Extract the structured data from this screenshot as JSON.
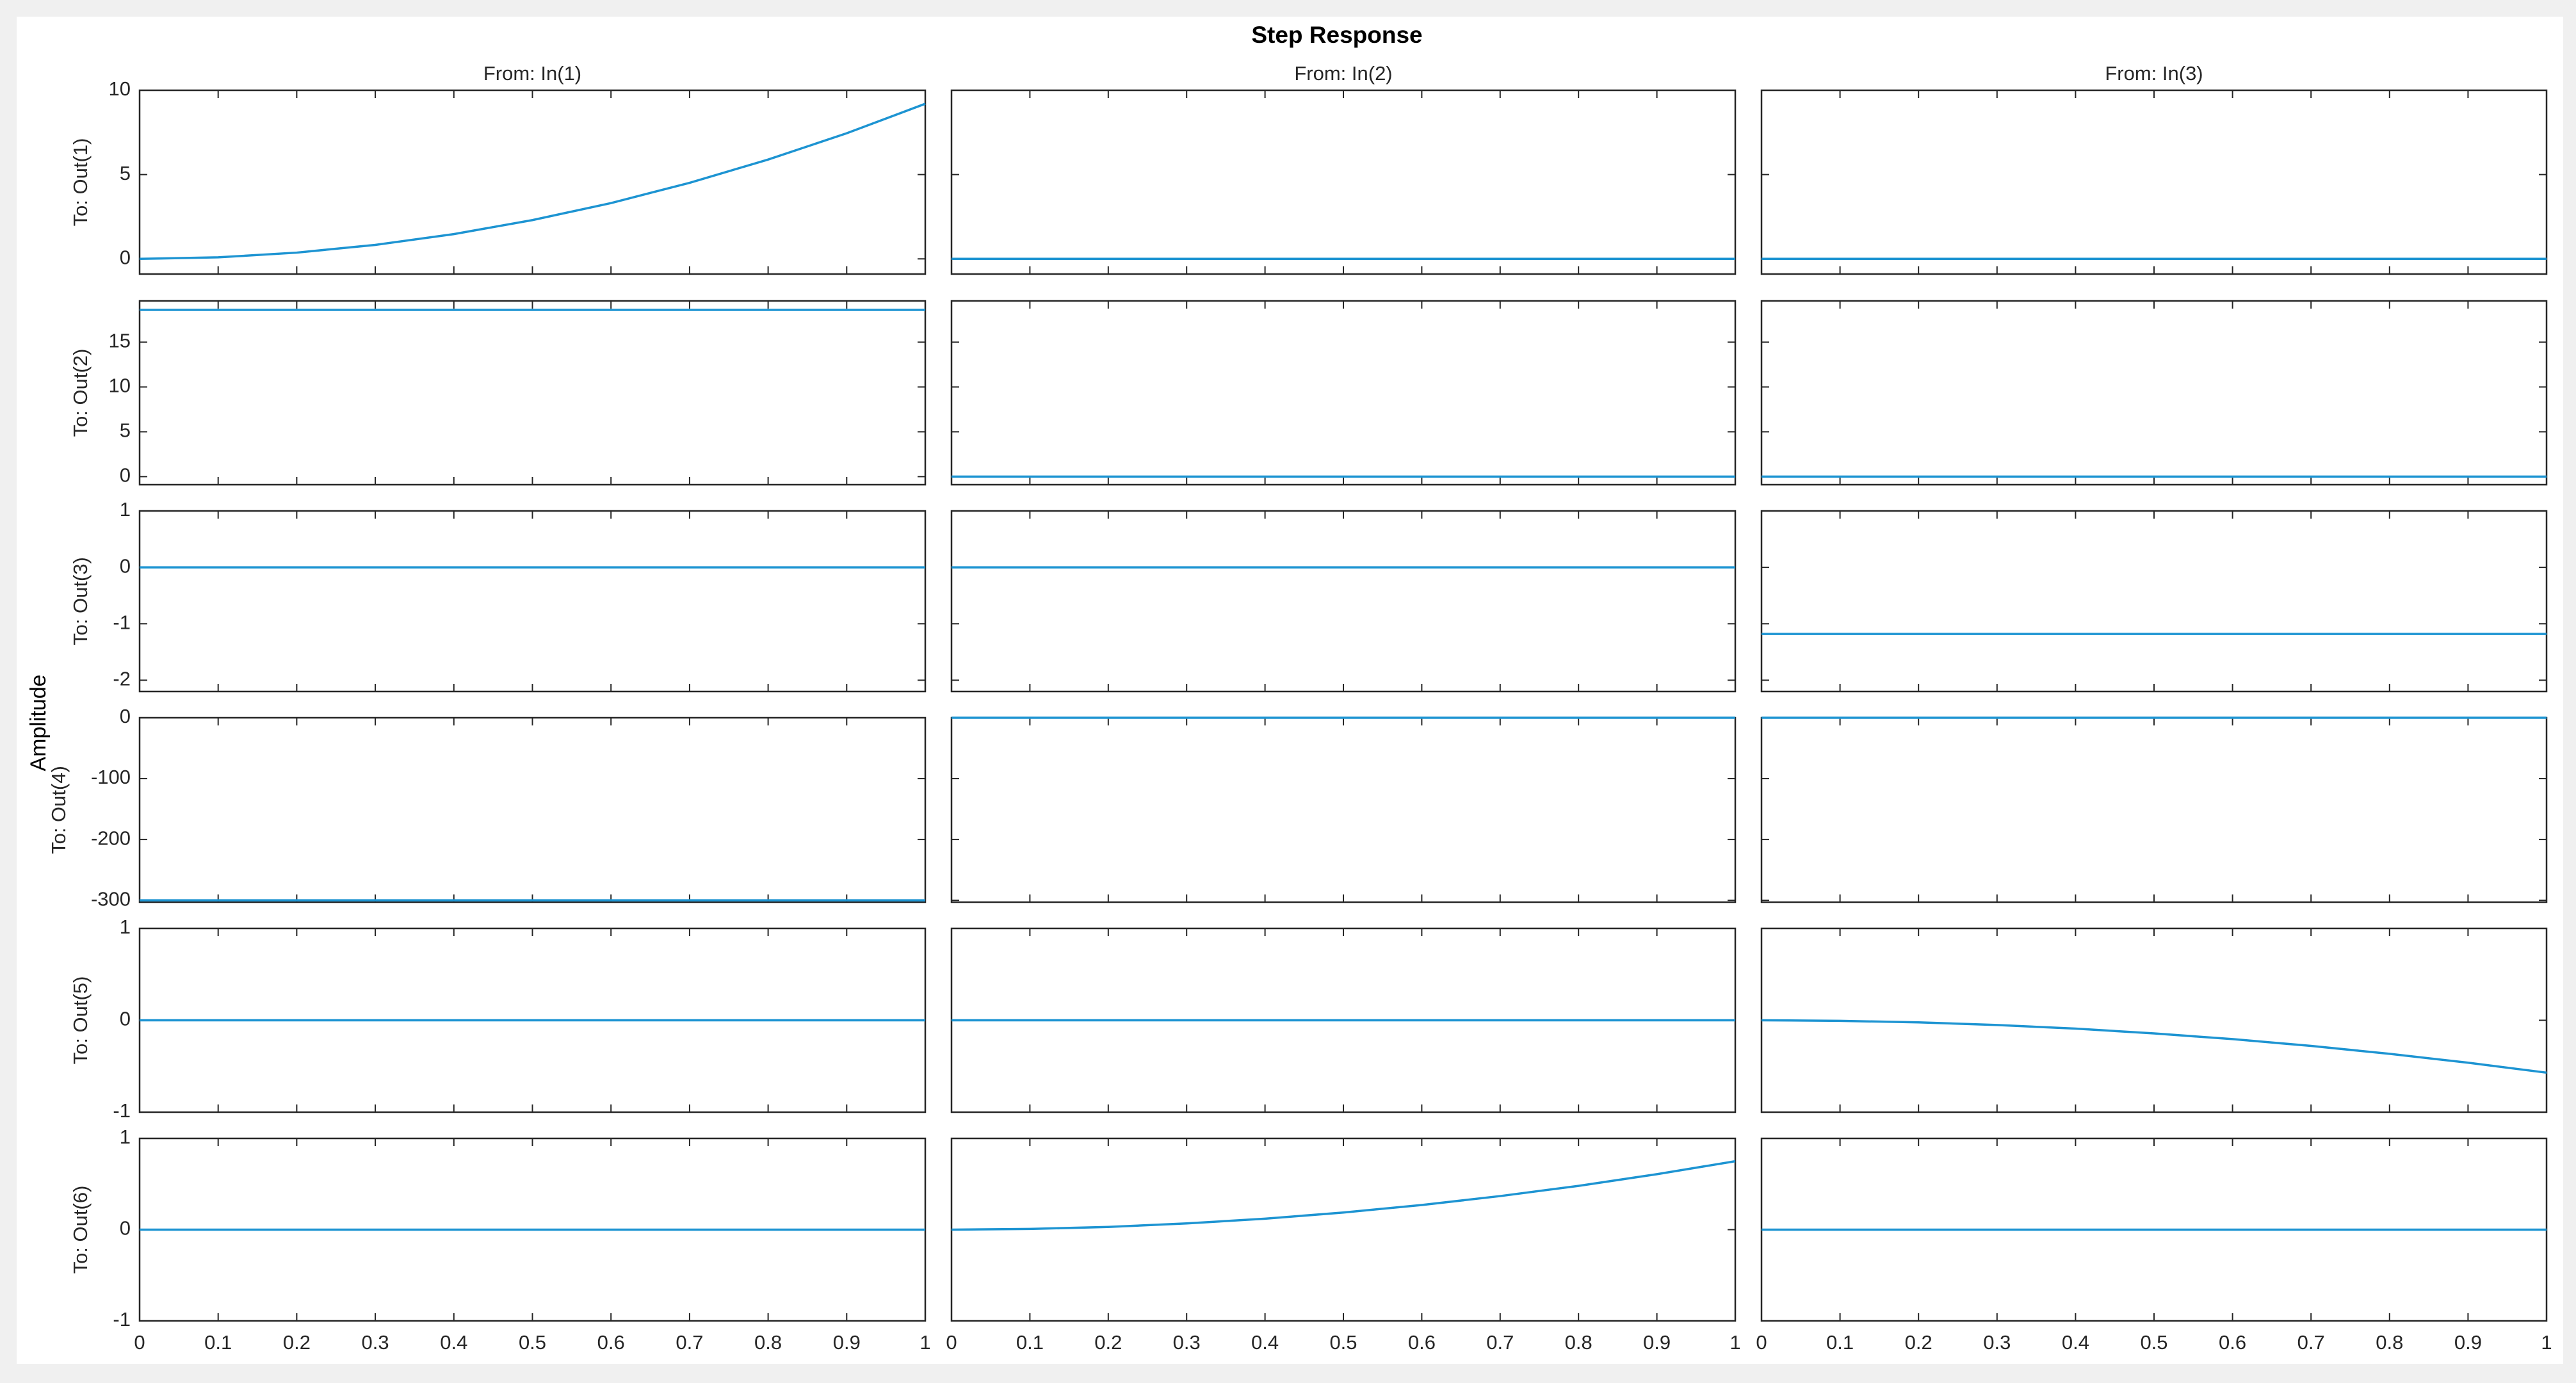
{
  "chart_data": {
    "type": "line",
    "title": "Step Response",
    "ylabel": "Amplitude",
    "color": "#1d94d2",
    "grid": false,
    "columns": [
      "From: In(1)",
      "From: In(2)",
      "From: In(3)"
    ],
    "x": [
      0,
      0.1,
      0.2,
      0.3,
      0.4,
      0.5,
      0.6,
      0.7,
      0.8,
      0.9,
      1
    ],
    "xlim": [
      0,
      1
    ],
    "xticks": [
      0,
      0.1,
      0.2,
      0.3,
      0.4,
      0.5,
      0.6,
      0.7,
      0.8,
      0.9,
      1
    ],
    "rows": [
      {
        "label": "To: Out(1)",
        "ylim": [
          -0.9,
          10
        ],
        "yticks": [
          0,
          5,
          10
        ],
        "values": [
          [
            0,
            0.09,
            0.37,
            0.83,
            1.47,
            2.3,
            3.31,
            4.51,
            5.89,
            7.45,
            9.2
          ],
          [
            0,
            0,
            0,
            0,
            0,
            0,
            0,
            0,
            0,
            0,
            0
          ],
          [
            0,
            0,
            0,
            0,
            0,
            0,
            0,
            0,
            0,
            0,
            0
          ]
        ]
      },
      {
        "label": "To: Out(2)",
        "ylim": [
          -0.9,
          19.6
        ],
        "yticks": [
          0,
          5,
          10,
          15
        ],
        "values": [
          [
            18.6,
            18.6,
            18.6,
            18.6,
            18.6,
            18.6,
            18.6,
            18.6,
            18.6,
            18.6,
            18.6
          ],
          [
            0,
            0,
            0,
            0,
            0,
            0,
            0,
            0,
            0,
            0,
            0
          ],
          [
            0,
            0,
            0,
            0,
            0,
            0,
            0,
            0,
            0,
            0,
            0
          ]
        ]
      },
      {
        "label": "To: Out(3)",
        "ylim": [
          -2.2,
          1
        ],
        "yticks": [
          -2,
          -1,
          0,
          1
        ],
        "values": [
          [
            0,
            0,
            0,
            0,
            0,
            0,
            0,
            0,
            0,
            0,
            0
          ],
          [
            0,
            0,
            0,
            0,
            0,
            0,
            0,
            0,
            0,
            0,
            0
          ],
          [
            -1.18,
            -1.18,
            -1.18,
            -1.18,
            -1.18,
            -1.18,
            -1.18,
            -1.18,
            -1.18,
            -1.18,
            -1.18
          ]
        ]
      },
      {
        "label": "To: Out(4)",
        "ylim": [
          -303,
          0
        ],
        "yticks": [
          -300,
          -200,
          -100,
          0
        ],
        "values": [
          [
            -300,
            -300,
            -300,
            -300,
            -300,
            -300,
            -300,
            -300,
            -300,
            -300,
            -300
          ],
          [
            0,
            0,
            0,
            0,
            0,
            0,
            0,
            0,
            0,
            0,
            0
          ],
          [
            0,
            0,
            0,
            0,
            0,
            0,
            0,
            0,
            0,
            0,
            0
          ]
        ]
      },
      {
        "label": "To: Out(5)",
        "ylim": [
          -1,
          1
        ],
        "yticks": [
          -1,
          0,
          1
        ],
        "values": [
          [
            0,
            0,
            0,
            0,
            0,
            0,
            0,
            0,
            0,
            0,
            0
          ],
          [
            0,
            0,
            0,
            0,
            0,
            0,
            0,
            0,
            0,
            0,
            0
          ],
          [
            0,
            -0.006,
            -0.023,
            -0.051,
            -0.091,
            -0.143,
            -0.205,
            -0.279,
            -0.365,
            -0.462,
            -0.57
          ]
        ]
      },
      {
        "label": "To: Out(6)",
        "ylim": [
          -1,
          1
        ],
        "yticks": [
          -1,
          0,
          1
        ],
        "values": [
          [
            0,
            0,
            0,
            0,
            0,
            0,
            0,
            0,
            0,
            0,
            0
          ],
          [
            0,
            0.0075,
            0.03,
            0.068,
            0.12,
            0.188,
            0.27,
            0.368,
            0.48,
            0.608,
            0.75
          ],
          [
            0,
            0,
            0,
            0,
            0,
            0,
            0,
            0,
            0,
            0,
            0
          ]
        ]
      }
    ]
  }
}
